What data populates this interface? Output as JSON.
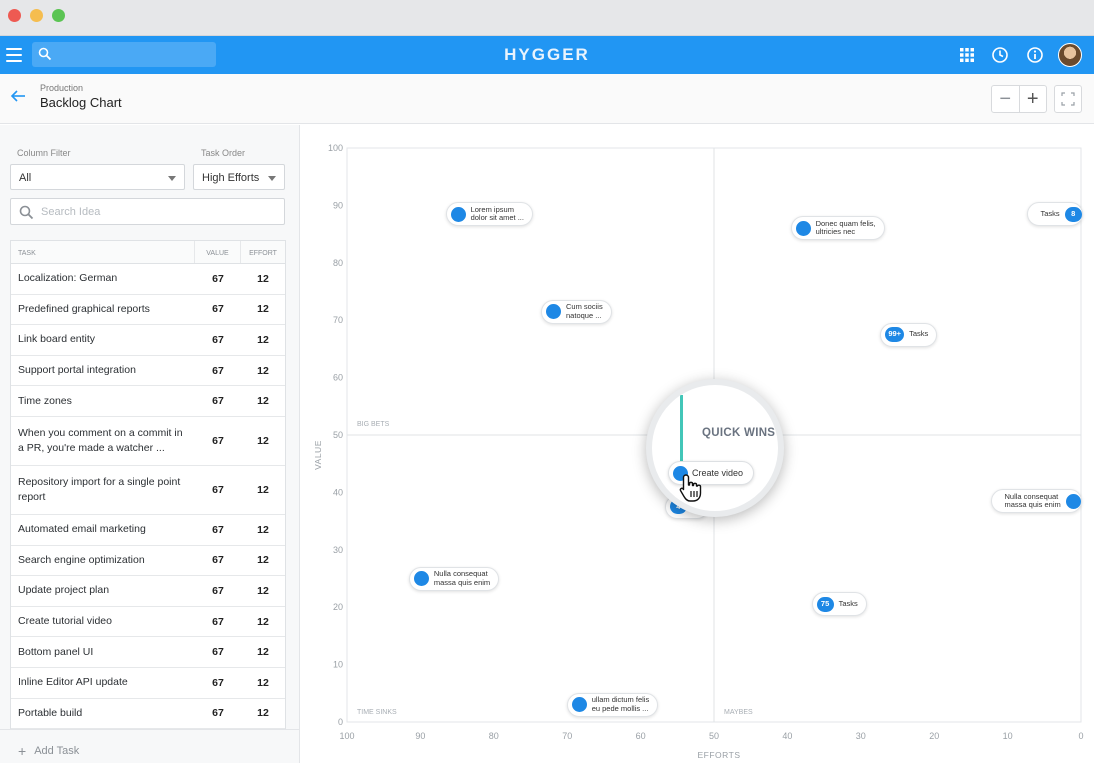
{
  "app": {
    "brand": "HYGGER",
    "icons": [
      "menu-icon",
      "search-icon",
      "apps-grid-icon",
      "clock-icon",
      "info-icon",
      "avatar"
    ],
    "accent_color": "#2196f3"
  },
  "subheader": {
    "breadcrumb": "Production",
    "title": "Backlog Chart",
    "zoom_out_label": "−",
    "zoom_in_label": "+"
  },
  "sidebar": {
    "column_filter": {
      "label": "Column Filter",
      "value": "All"
    },
    "task_order": {
      "label": "Task Order",
      "value": "High Efforts"
    },
    "search": {
      "placeholder": "Search Idea",
      "value": ""
    },
    "table": {
      "headers": {
        "task": "TASK",
        "value": "VALUE",
        "effort": "EFFORT"
      },
      "rows": [
        {
          "task": "Localization: German",
          "value": "67",
          "effort": "12"
        },
        {
          "task": "Predefined graphical reports",
          "value": "67",
          "effort": "12"
        },
        {
          "task": "Link board entity",
          "value": "67",
          "effort": "12"
        },
        {
          "task": "Support portal integration",
          "value": "67",
          "effort": "12"
        },
        {
          "task": "Time zones",
          "value": "67",
          "effort": "12"
        },
        {
          "task": "When you comment on a commit in a PR, you're made a watcher ...",
          "value": "67",
          "effort": "12"
        },
        {
          "task": "Repository import for a single point report",
          "value": "67",
          "effort": "12"
        },
        {
          "task": "Automated email marketing",
          "value": "67",
          "effort": "12"
        },
        {
          "task": "Search engine optimization",
          "value": "67",
          "effort": "12"
        },
        {
          "task": "Update project plan",
          "value": "67",
          "effort": "12"
        },
        {
          "task": "Create tutorial video",
          "value": "67",
          "effort": "12"
        },
        {
          "task": "Bottom panel UI",
          "value": "67",
          "effort": "12"
        },
        {
          "task": "Inline Editor API update",
          "value": "67",
          "effort": "12"
        },
        {
          "task": "Portable build",
          "value": "67",
          "effort": "12"
        }
      ]
    },
    "add_task_label": "Add Task"
  },
  "chart_data": {
    "type": "scatter",
    "xlabel": "EFFORTS",
    "ylabel": "VALUE",
    "xlim": [
      100,
      0
    ],
    "ylim": [
      0,
      100
    ],
    "x_ticks": [
      "100",
      "90",
      "80",
      "70",
      "60",
      "50",
      "40",
      "30",
      "20",
      "10",
      "0"
    ],
    "y_ticks": [
      "0",
      "10",
      "20",
      "30",
      "40",
      "50",
      "60",
      "70",
      "80",
      "90",
      "100"
    ],
    "quadrants": {
      "top_left": "BIG BETS",
      "top_right": "QUICK WINS",
      "bottom_left": "TIME SINKS",
      "bottom_right": "MAYBES"
    },
    "points": [
      {
        "x": 85,
        "y": 88.5,
        "kind": "dot",
        "label": [
          "Lorem ipsum",
          "dolor sit amet ..."
        ]
      },
      {
        "x": 38,
        "y": 86,
        "kind": "dot",
        "label": [
          "Donec quam felis,",
          "ultricies nec"
        ]
      },
      {
        "x": 1.5,
        "y": 88.5,
        "kind": "badge",
        "badge": "8",
        "label": [
          "Tasks"
        ],
        "reverse": true
      },
      {
        "x": 72,
        "y": 71.5,
        "kind": "dot",
        "label": [
          "Cum sociis",
          "natoque ..."
        ]
      },
      {
        "x": 25.5,
        "y": 67.5,
        "kind": "badge",
        "badge": "99+",
        "label": [
          "Tasks"
        ]
      },
      {
        "x": 1.5,
        "y": 38.5,
        "kind": "dot",
        "label": [
          "Nulla consequat",
          "massa quis enim"
        ],
        "reverse": true
      },
      {
        "x": 90,
        "y": 25,
        "kind": "dot",
        "label": [
          "Nulla consequat",
          "massa quis enim"
        ]
      },
      {
        "x": 35,
        "y": 20.5,
        "kind": "badge",
        "badge": "75",
        "label": [
          "Tasks"
        ]
      },
      {
        "x": 68.5,
        "y": 3,
        "kind": "dot",
        "label": [
          "ullam dictum felis",
          "eu pede mollis ..."
        ]
      },
      {
        "x": 55,
        "y": 37.5,
        "kind": "badge",
        "badge": "4",
        "label": [
          "Ta"
        ]
      }
    ],
    "magnifier": {
      "title": "QUICK WINS",
      "item_label": "Create video"
    }
  }
}
